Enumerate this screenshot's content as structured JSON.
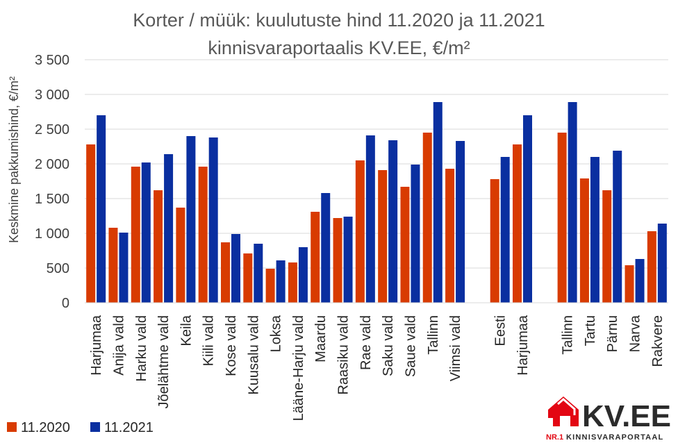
{
  "chart_data": {
    "type": "bar",
    "title_line1": "Korter / müük: kuulutuste hind 11.2020 ja 11.2021",
    "title_line2": "kinnisvaraportaalis KV.EE, €/m²",
    "ylabel": "Keskmine pakkumishind, €/m²",
    "xlabel": "",
    "ylim": [
      0,
      3500
    ],
    "yticks": [
      0,
      500,
      1000,
      1500,
      2000,
      2500,
      3000,
      3500
    ],
    "ytick_labels": [
      "0",
      "500",
      "1 000",
      "1 500",
      "2 000",
      "2 500",
      "3 000",
      "3 500"
    ],
    "grid": true,
    "legend_position": "bottom-left",
    "categories": [
      "Harjumaa",
      "Anija vald",
      "Harku vald",
      "Jõelähtme vald",
      "Keila",
      "Kiili vald",
      "Kose vald",
      "Kuusalu vald",
      "Loksa",
      "Lääne-Harju vald",
      "Maardu",
      "Raasiku vald",
      "Rae vald",
      "Saku vald",
      "Saue vald",
      "Tallinn",
      "Viimsi vald",
      "",
      "Eesti",
      "Harjumaa",
      "",
      "Tallinn",
      "Tartu",
      "Pärnu",
      "Narva",
      "Rakvere"
    ],
    "series": [
      {
        "name": "11.2020",
        "color": "#d83b01",
        "values": [
          2280,
          1080,
          1960,
          1620,
          1370,
          1960,
          870,
          710,
          490,
          580,
          1310,
          1220,
          2050,
          1910,
          1670,
          2450,
          1930,
          null,
          1780,
          2280,
          null,
          2450,
          1790,
          1620,
          540,
          1030
        ]
      },
      {
        "name": "11.2021",
        "color": "#0a2fa0",
        "values": [
          2700,
          1010,
          2020,
          2140,
          2400,
          2380,
          990,
          850,
          610,
          800,
          1580,
          1240,
          2410,
          2340,
          1990,
          2890,
          2330,
          null,
          2100,
          2700,
          null,
          2890,
          2100,
          2190,
          630,
          1140
        ]
      }
    ]
  },
  "logo": {
    "brand": "KV.EE",
    "tagline_prefix": "NR.1",
    "tagline": "KINNISVARAPORTAAL",
    "house_color": "#e30613",
    "text_color": "#2b2b2b"
  }
}
